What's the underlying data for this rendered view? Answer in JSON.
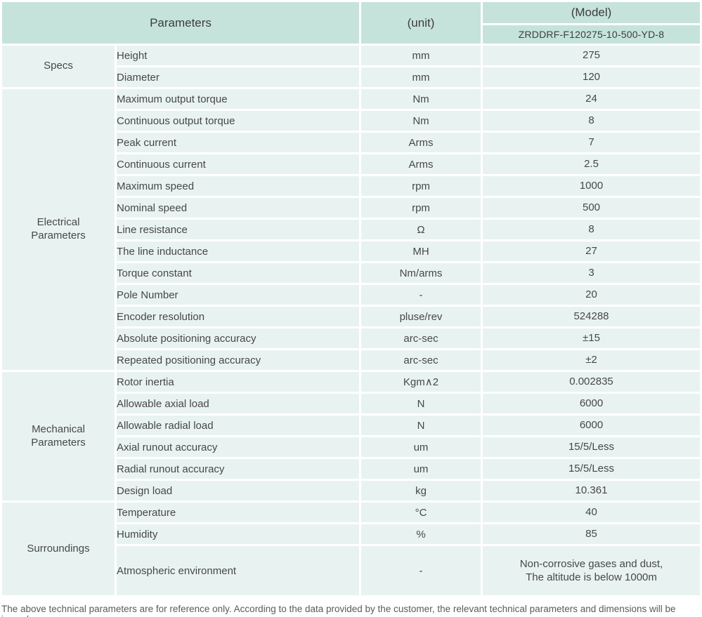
{
  "colors": {
    "header_bg": "#c5e3db",
    "body_bg": "#e8f3f1",
    "divider": "#ffffff"
  },
  "table": {
    "header": {
      "parameters_label": "Parameters",
      "unit_label": "(unit)",
      "model_label": "(Model)",
      "model_value": "ZRDDRF-F120275-10-500-YD-8"
    },
    "sections": [
      {
        "name": "Specs",
        "rows": [
          {
            "parameter": "Height",
            "unit": "mm",
            "value": "275"
          },
          {
            "parameter": "Diameter",
            "unit": "mm",
            "value": "120"
          }
        ]
      },
      {
        "name": "Electrical Parameters",
        "rows": [
          {
            "parameter": "Maximum output torque",
            "unit": "Nm",
            "value": "24"
          },
          {
            "parameter": "Continuous output torque",
            "unit": "Nm",
            "value": "8"
          },
          {
            "parameter": "Peak current",
            "unit": "Arms",
            "value": "7"
          },
          {
            "parameter": "Continuous current",
            "unit": "Arms",
            "value": "2.5"
          },
          {
            "parameter": "Maximum speed",
            "unit": "rpm",
            "value": "1000"
          },
          {
            "parameter": "Nominal speed",
            "unit": "rpm",
            "value": "500"
          },
          {
            "parameter": "Line resistance",
            "unit": "Ω",
            "value": "8"
          },
          {
            "parameter": "The line inductance",
            "unit": "MH",
            "value": "27"
          },
          {
            "parameter": "Torque constant",
            "unit": "Nm/arms",
            "value": "3"
          },
          {
            "parameter": "Pole Number",
            "unit": "-",
            "value": "20"
          },
          {
            "parameter": "Encoder resolution",
            "unit": "pluse/rev",
            "value": "524288"
          },
          {
            "parameter": "Absolute positioning accuracy",
            "unit": "arc-sec",
            "value": "±15"
          },
          {
            "parameter": "Repeated positioning accuracy",
            "unit": "arc-sec",
            "value": "±2"
          }
        ]
      },
      {
        "name": "Mechanical Parameters",
        "rows": [
          {
            "parameter": "Rotor inertia",
            "unit": "Kgm∧2",
            "value": "0.002835"
          },
          {
            "parameter": "Allowable axial load",
            "unit": "N",
            "value": "6000"
          },
          {
            "parameter": "Allowable radial load",
            "unit": "N",
            "value": "6000"
          },
          {
            "parameter": "Axial runout accuracy",
            "unit": "um",
            "value": "15/5/Less"
          },
          {
            "parameter": "Radial runout accuracy",
            "unit": "um",
            "value": "15/5/Less"
          },
          {
            "parameter": "Design load",
            "unit": "kg",
            "value": "10.361"
          }
        ]
      },
      {
        "name": "Surroundings",
        "rows": [
          {
            "parameter": "Temperature",
            "unit": "°C",
            "value": "40"
          },
          {
            "parameter": "Humidity",
            "unit": "%",
            "value": "85"
          },
          {
            "parameter": "Atmospheric environment",
            "unit": "-",
            "value": "Non-corrosive gases and dust,\nThe altitude is below 1000m",
            "tall": true
          }
        ]
      }
    ]
  },
  "page": {
    "footer_note": "The above technical parameters are for reference only. According to the data provided by the customer, the relevant technical parameters and dimensions will be issued."
  }
}
